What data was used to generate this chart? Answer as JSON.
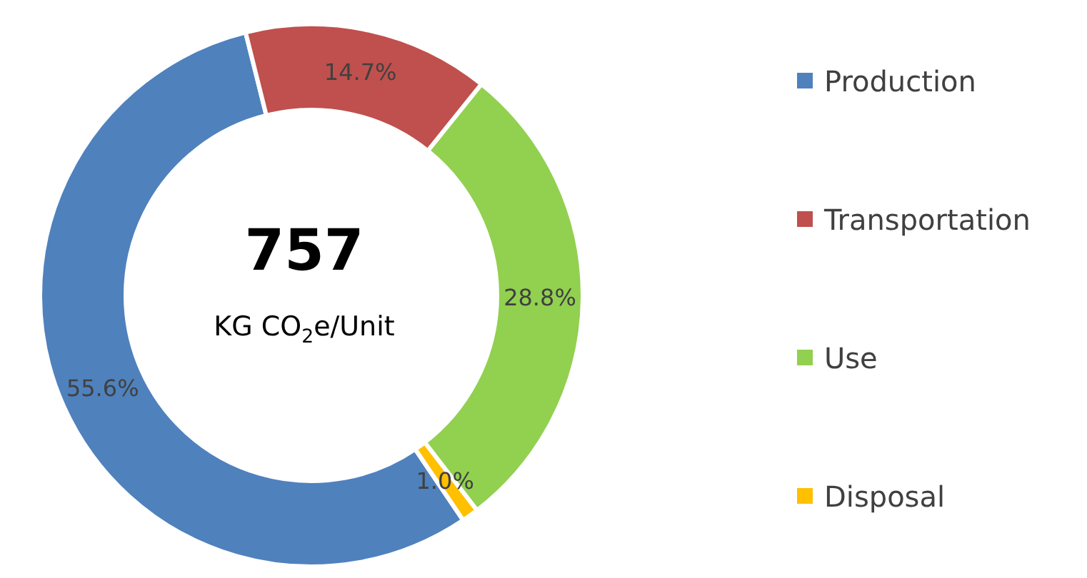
{
  "chart_data": {
    "type": "donut",
    "categories": [
      "Production",
      "Transportation",
      "Use",
      "Disposal"
    ],
    "values": [
      55.6,
      14.7,
      28.8,
      1.0
    ],
    "value_labels": [
      "55.6%",
      "14.7%",
      "28.8%",
      "1.0%"
    ],
    "colors": [
      "#4f81bd",
      "#c0504d",
      "#92d050",
      "#ffc000"
    ],
    "annotations": [
      "757",
      "KG CO$_{2}$e/Unit"
    ],
    "legend": "right"
  }
}
